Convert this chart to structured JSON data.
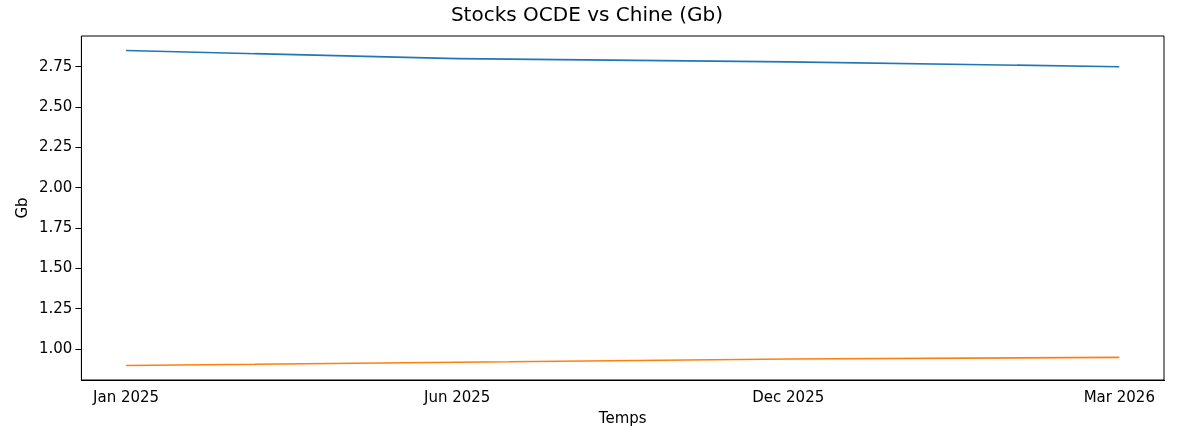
{
  "chart_data": {
    "type": "line",
    "title": "Stocks OCDE vs Chine (Gb)",
    "xlabel": "Temps",
    "ylabel": "Gb",
    "categories": [
      "Jan 2025",
      "Jun 2025",
      "Dec 2025",
      "Mar 2026"
    ],
    "series": [
      {
        "color": "#1f77b4",
        "values": [
          2.85,
          2.8,
          2.78,
          2.75
        ]
      },
      {
        "color": "#ff7f0e",
        "values": [
          0.9,
          0.92,
          0.94,
          0.95
        ]
      }
    ],
    "ylim": [
      0.81,
      2.94
    ],
    "yticks": [
      {
        "value": 1,
        "label": "1.00"
      },
      1.25,
      {
        "value": 1.5,
        "label": "1.50"
      },
      1.75,
      {
        "value": 2,
        "label": "2.00"
      },
      2.25,
      {
        "value": 2.5,
        "label": "2.50"
      },
      2.75
    ],
    "grid": false,
    "legend": false,
    "marker": "none",
    "line_style": "solid"
  }
}
